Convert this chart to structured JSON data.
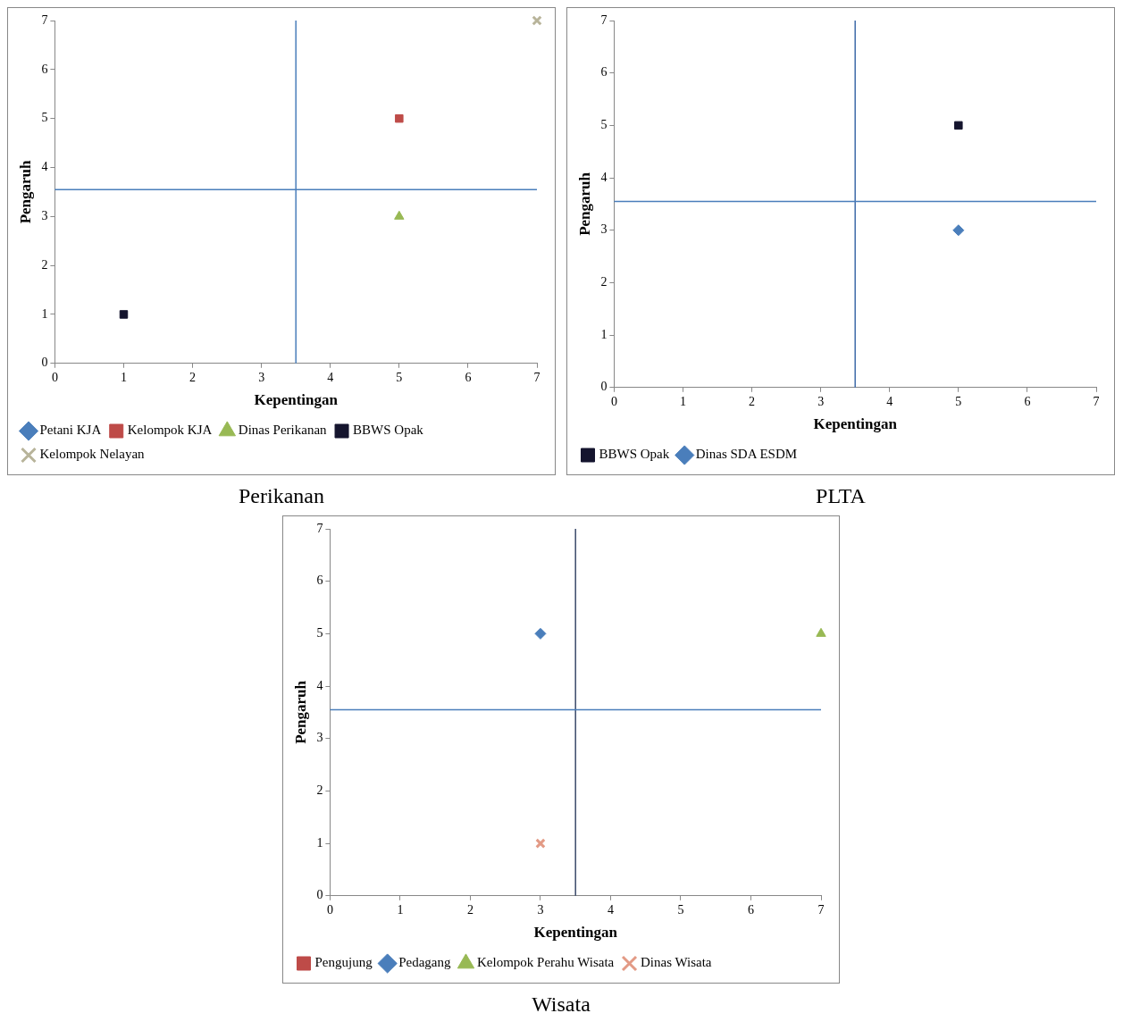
{
  "chart_data": [
    {
      "type": "scatter",
      "title": "Perikanan",
      "xlabel": "Kepentingan",
      "ylabel": "Pengaruh",
      "xlim": [
        0,
        7
      ],
      "ylim": [
        0,
        7
      ],
      "xticks": [
        0,
        1,
        2,
        3,
        4,
        5,
        6,
        7
      ],
      "yticks": [
        0,
        1,
        2,
        3,
        4,
        5,
        6,
        7
      ],
      "grid": false,
      "legend": "bottom",
      "ref_lines": [
        {
          "axis": "x",
          "value": 3.5,
          "color": "#4a7ebb"
        },
        {
          "axis": "y",
          "value": 3.55,
          "color": "#4a7ebb"
        }
      ],
      "series": [
        {
          "name": "Petani KJA",
          "color": "#4a7ebb",
          "marker": "diamond",
          "x": [
            null
          ],
          "values": [
            null
          ]
        },
        {
          "name": "Kelompok KJA",
          "color": "#be4b48",
          "marker": "square",
          "x": [
            5
          ],
          "values": [
            5
          ]
        },
        {
          "name": "Dinas Perikanan",
          "color": "#98b954",
          "marker": "triangle",
          "x": [
            5
          ],
          "values": [
            3
          ]
        },
        {
          "name": "BBWS Opak",
          "color": "#15152e",
          "marker": "square",
          "x": [
            1
          ],
          "values": [
            1
          ]
        },
        {
          "name": "Kelompok Nelayan",
          "color": "#b8b49a",
          "marker": "cross",
          "x": [
            7
          ],
          "values": [
            7
          ]
        }
      ]
    },
    {
      "type": "scatter",
      "title": "PLTA",
      "xlabel": "Kepentingan",
      "ylabel": "Pengaruh",
      "xlim": [
        0,
        7
      ],
      "ylim": [
        0,
        7
      ],
      "xticks": [
        0,
        1,
        2,
        3,
        4,
        5,
        6,
        7
      ],
      "yticks": [
        0,
        1,
        2,
        3,
        4,
        5,
        6,
        7
      ],
      "grid": false,
      "legend": "bottom",
      "ref_lines": [
        {
          "axis": "x",
          "value": 3.5,
          "color": "#3f6aa8"
        },
        {
          "axis": "y",
          "value": 3.55,
          "color": "#4a7ebb"
        }
      ],
      "series": [
        {
          "name": "BBWS Opak",
          "color": "#15152e",
          "marker": "square",
          "x": [
            5
          ],
          "values": [
            5
          ]
        },
        {
          "name": "Dinas SDA ESDM",
          "color": "#4a7ebb",
          "marker": "diamond",
          "x": [
            5
          ],
          "values": [
            3
          ]
        }
      ]
    },
    {
      "type": "scatter",
      "title": "Wisata",
      "xlabel": "Kepentingan",
      "ylabel": "Pengaruh",
      "xlim": [
        0,
        7
      ],
      "ylim": [
        0,
        7
      ],
      "xticks": [
        0,
        1,
        2,
        3,
        4,
        5,
        6,
        7
      ],
      "yticks": [
        0,
        1,
        2,
        3,
        4,
        5,
        6,
        7
      ],
      "grid": false,
      "legend": "bottom",
      "ref_lines": [
        {
          "axis": "x",
          "value": 3.5,
          "color": "#3a4a6a"
        },
        {
          "axis": "y",
          "value": 3.55,
          "color": "#4a7ebb"
        }
      ],
      "series": [
        {
          "name": "Pengujung",
          "color": "#be4b48",
          "marker": "square",
          "x": [
            null
          ],
          "values": [
            null
          ]
        },
        {
          "name": "Pedagang",
          "color": "#4a7ebb",
          "marker": "diamond",
          "x": [
            3
          ],
          "values": [
            5
          ]
        },
        {
          "name": "Kelompok Perahu Wisata",
          "color": "#98b954",
          "marker": "triangle",
          "x": [
            7
          ],
          "values": [
            5
          ]
        },
        {
          "name": "Dinas Wisata",
          "color": "#e39a85",
          "marker": "cross",
          "x": [
            3
          ],
          "values": [
            1
          ]
        }
      ]
    }
  ]
}
